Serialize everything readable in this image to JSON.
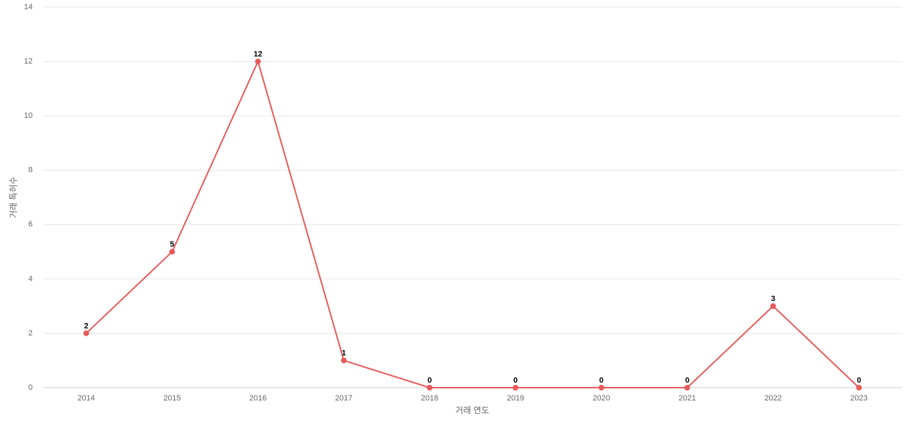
{
  "chart_data": {
    "type": "line",
    "x_label": "거래 연도",
    "y_label": "거래 특허수",
    "categories": [
      "2014",
      "2015",
      "2016",
      "2017",
      "2018",
      "2019",
      "2020",
      "2021",
      "2022",
      "2023"
    ],
    "series": [
      {
        "name": "거래 특허수",
        "color": "#e85a5a",
        "values": [
          2,
          5,
          12,
          1,
          0,
          0,
          0,
          0,
          3,
          0
        ]
      }
    ],
    "ylim": [
      0,
      14
    ],
    "yticks": [
      0,
      2,
      4,
      6,
      8,
      10,
      12,
      14
    ],
    "grid": true,
    "data_labels": true
  }
}
